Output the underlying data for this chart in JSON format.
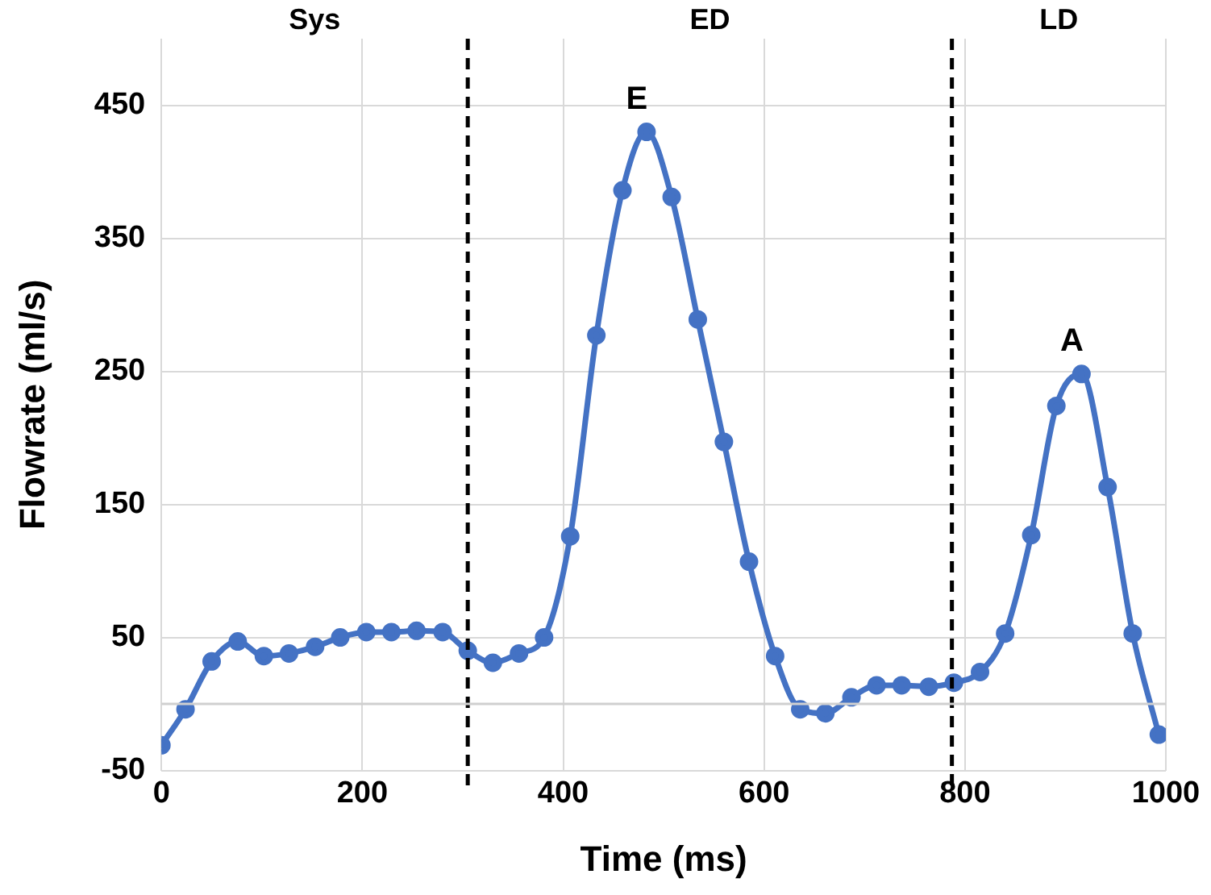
{
  "chart_data": {
    "type": "line",
    "xlabel": "Time (ms)",
    "ylabel": "Flowrate (ml/s)",
    "series": [
      {
        "color": "#4472c4",
        "x": [
          0,
          24,
          50,
          76,
          102,
          127,
          153,
          178,
          204,
          229,
          254,
          280,
          305,
          330,
          356,
          381,
          407,
          433,
          459,
          483,
          508,
          534,
          560,
          585,
          611,
          636,
          661,
          687,
          712,
          737,
          764,
          789,
          815,
          840,
          866,
          891,
          916,
          942,
          967,
          993
        ],
        "values": [
          -31,
          -4,
          32,
          47,
          36,
          38,
          43,
          50,
          54,
          54,
          55,
          54,
          40,
          31,
          38,
          50,
          126,
          277,
          386,
          430,
          381,
          289,
          197,
          107,
          36,
          -4,
          -7,
          5,
          14,
          14,
          13,
          16,
          24,
          53,
          127,
          224,
          248,
          163,
          53,
          -23
        ]
      }
    ],
    "xlim": [
      0,
      1000
    ],
    "xticks": [
      0,
      200,
      400,
      600,
      800,
      1000
    ],
    "ylim": [
      -50,
      500
    ],
    "yticks": [
      -50,
      50,
      150,
      250,
      350,
      450
    ],
    "grid": true,
    "legend": false,
    "marker": "circle",
    "line_style": "solid",
    "ref_lines": [
      {
        "axis": "x",
        "value": 305,
        "color": "#000000",
        "line_style": "dashed"
      },
      {
        "axis": "x",
        "value": 787,
        "color": "#000000",
        "line_style": "dashed"
      },
      {
        "axis": "y",
        "value": 0,
        "color": "#d0d0d0",
        "line_style": "solid"
      }
    ],
    "annotations": [
      "Sys",
      "ED",
      "LD",
      {
        "text": "E",
        "x": 483,
        "y": 430
      },
      {
        "text": "A",
        "x": 916,
        "y": 248
      }
    ]
  }
}
